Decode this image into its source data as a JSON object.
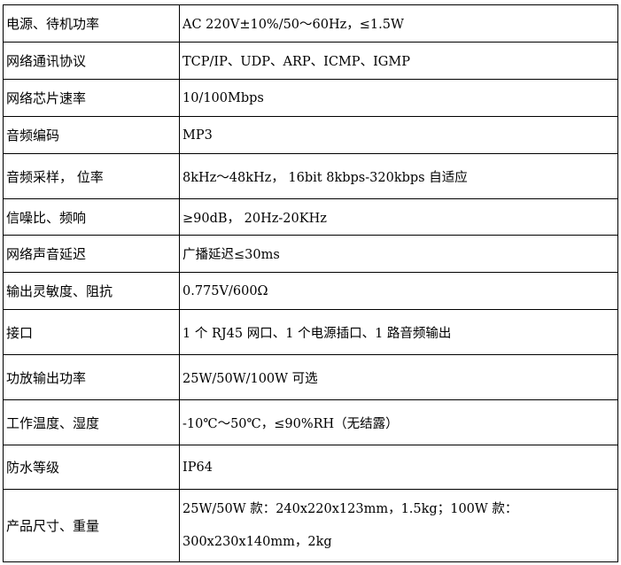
{
  "rows": [
    {
      "label": "电源、待机功率",
      "value": "AC 220V±10%/50～60Hz，≤1.5W"
    },
    {
      "label": "网络通讯协议",
      "value": "TCP/IP、UDP、ARP、ICMP、IGMP"
    },
    {
      "label": "网络芯片速率",
      "value": "10/100Mbps"
    },
    {
      "label": "音频编码",
      "value": "MP3"
    },
    {
      "label": "音频采样， 位率",
      "value": "8kHz～48kHz， 16bit 8kbps-320kbps 自适应"
    },
    {
      "label": "信噪比、频响",
      "value": "≥90dB， 20Hz-20KHz"
    },
    {
      "label": "网络声音延迟",
      "value": "广播延迟≤30ms"
    },
    {
      "label": "输出灵敏度、阻抗",
      "value": "0.775V/600Ω"
    },
    {
      "label": "接口",
      "value": "1 个 RJ45 网口、1 个电源插口、1 路音频输出"
    },
    {
      "label": "功放输出功率",
      "value": "25W/50W/100W 可选"
    },
    {
      "label": "工作温度、湿度",
      "value": "-10℃～50℃，≤90%RH（无结露）"
    },
    {
      "label": "防水等级",
      "value": "IP64"
    },
    {
      "label": "产品尺寸、重量",
      "value": "25W/50W 款：240x220x123mm，1.5kg；100W 款：300x230x140mm，2kg"
    }
  ]
}
